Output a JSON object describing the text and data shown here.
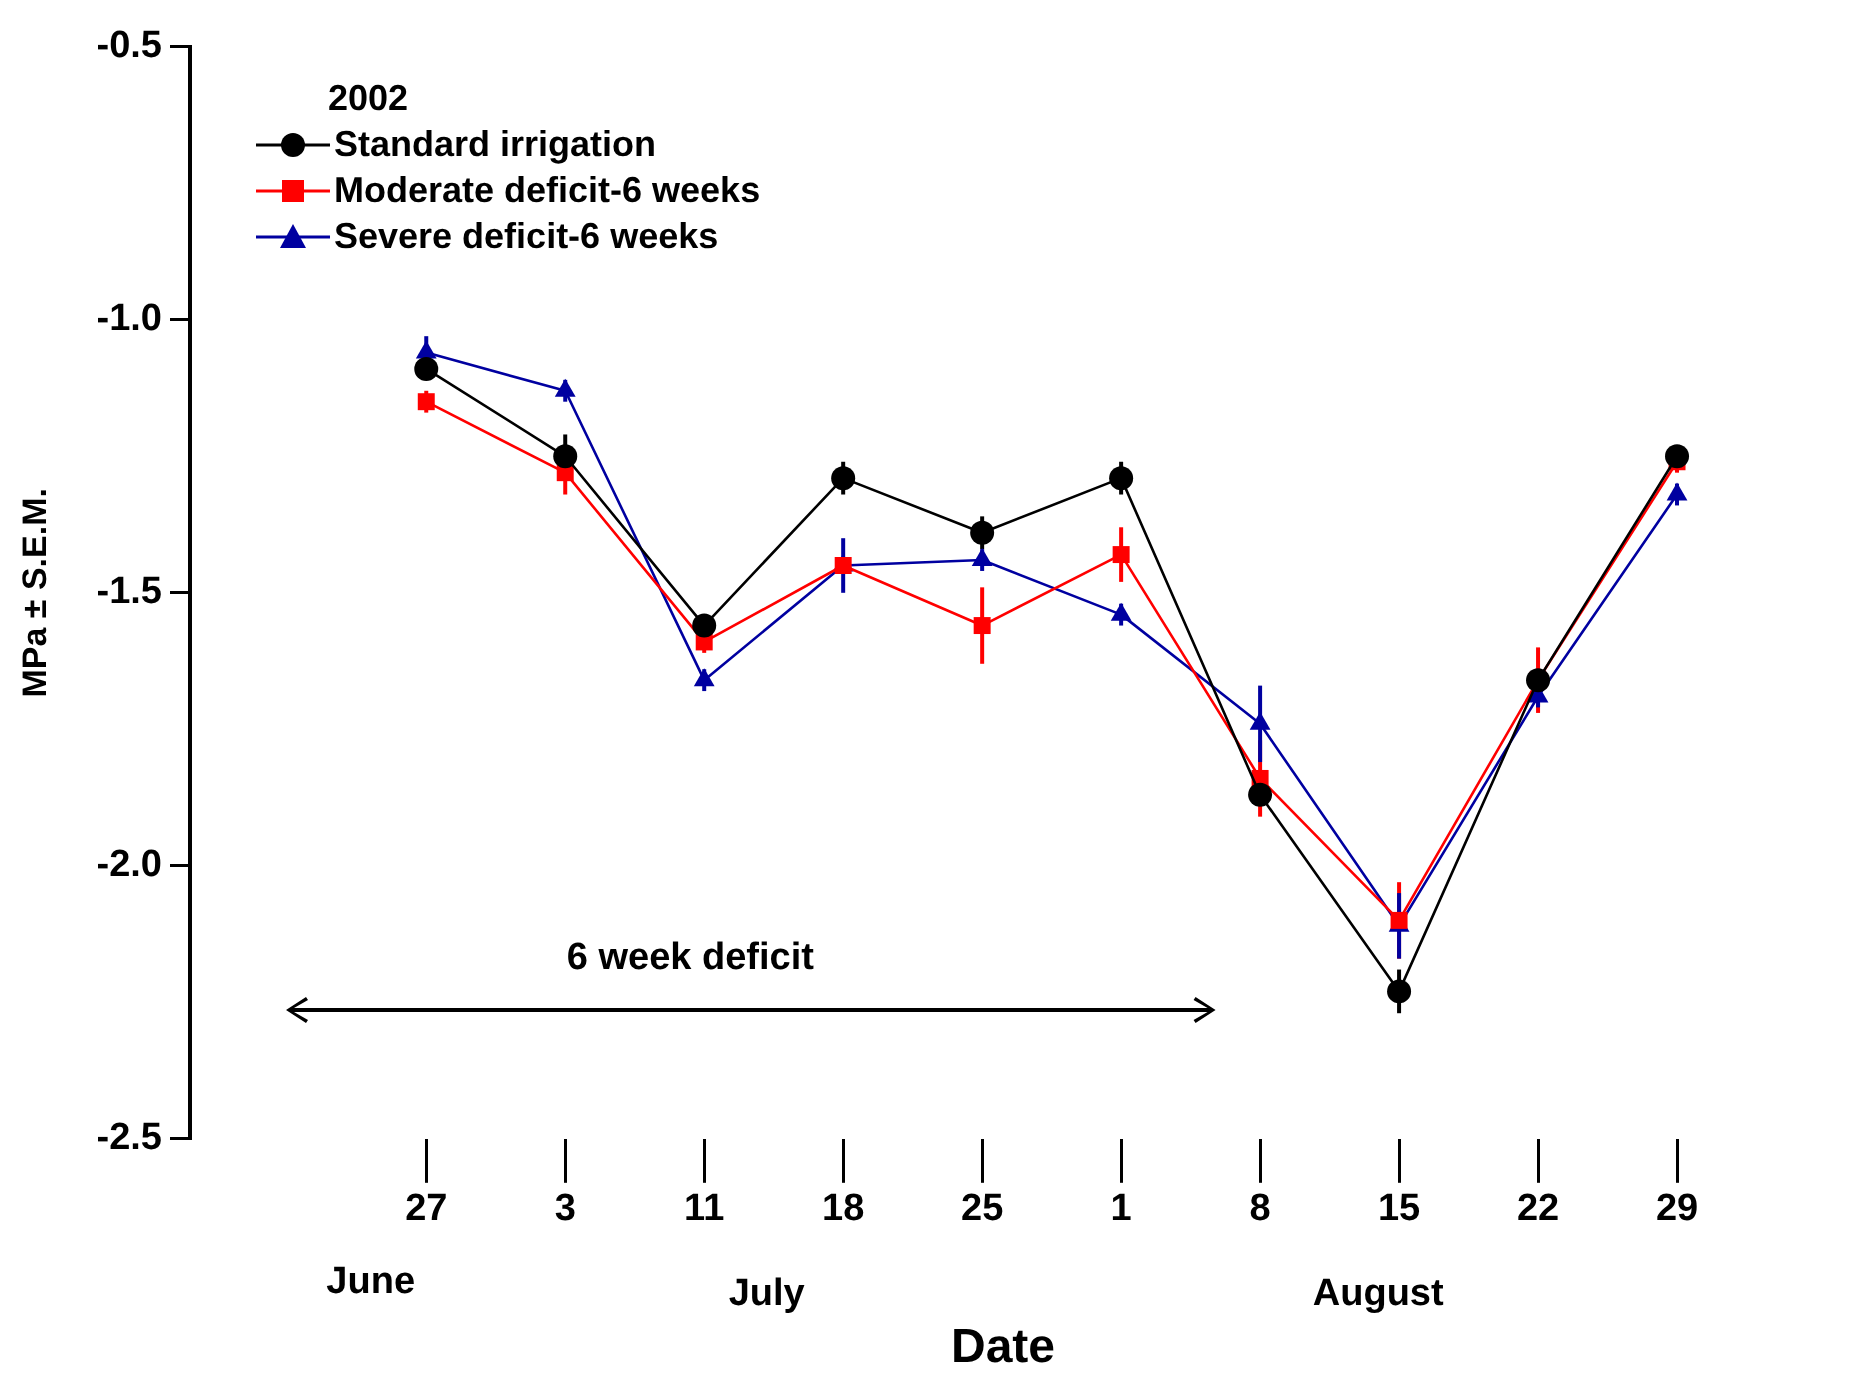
{
  "chart_data": {
    "type": "line",
    "xlabel": "Date",
    "ylabel": "MPa ± S.E.M.",
    "legend_title": "2002",
    "legend": "top left",
    "categories": [
      "27",
      "3",
      "11",
      "18",
      "25",
      "1",
      "8",
      "15",
      "22",
      "29"
    ],
    "ylim": [
      -2.5,
      -0.5
    ],
    "yticks": [
      {
        "value": -2.5,
        "label": "-2.5"
      },
      {
        "value": -2.0,
        "label": "-2.0"
      },
      {
        "value": -1.5,
        "label": "-1.5"
      },
      {
        "value": -1.0,
        "label": "-1.0"
      },
      {
        "value": -0.5,
        "label": "-0.5"
      }
    ],
    "series": [
      {
        "name": "Standard irrigation",
        "color": "#000000",
        "marker": "circle",
        "values": [
          -1.09,
          -1.25,
          -1.56,
          -1.29,
          -1.39,
          -1.29,
          -1.87,
          -2.23,
          -1.66,
          -1.25
        ],
        "errors": [
          0.02,
          0.04,
          0.02,
          0.03,
          0.03,
          0.03,
          0.02,
          0.04,
          0.02,
          0.02
        ]
      },
      {
        "name": "Moderate deficit-6 weeks",
        "color": "#ff0000",
        "marker": "square",
        "values": [
          -1.15,
          -1.28,
          -1.59,
          -1.45,
          -1.56,
          -1.43,
          -1.84,
          -2.1,
          -1.66,
          -1.26
        ],
        "errors": [
          0.02,
          0.04,
          0.02,
          null,
          0.07,
          0.05,
          0.07,
          0.07,
          0.06,
          0.02
        ]
      },
      {
        "name": "Severe deficit-6 weeks",
        "color": "#0000a0",
        "marker": "triangle",
        "values": [
          -1.06,
          -1.13,
          -1.66,
          -1.45,
          -1.44,
          -1.54,
          -1.74,
          -2.11,
          -1.69,
          -1.32
        ],
        "errors": [
          0.03,
          0.02,
          0.02,
          0.05,
          0.02,
          0.02,
          0.07,
          0.06,
          0.02,
          0.02
        ]
      }
    ],
    "annotations": [
      "6 week deficit",
      "June",
      "July",
      "August"
    ]
  }
}
